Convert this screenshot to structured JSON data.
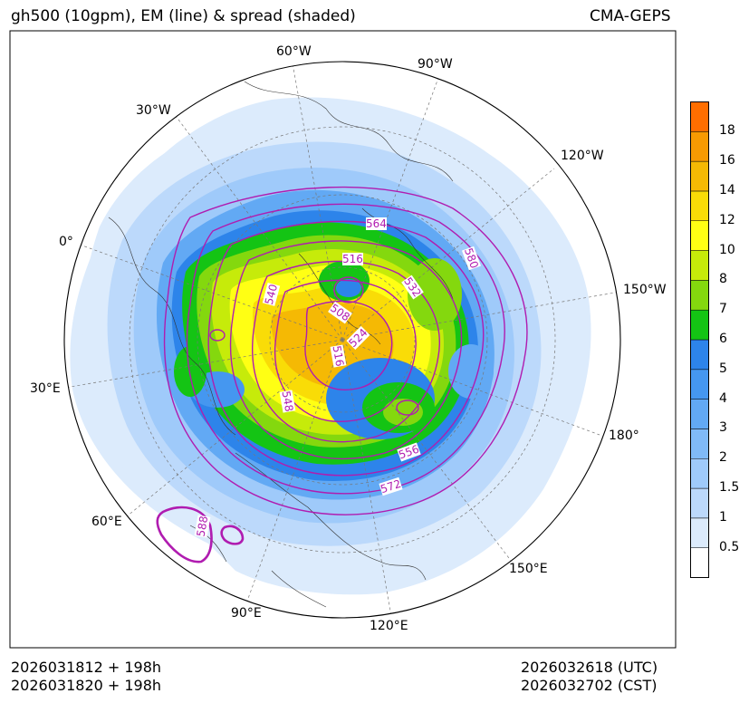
{
  "header": {
    "title": "gh500 (10gpm), EM (line) & spread (shaded)",
    "source": "CMA-GEPS"
  },
  "footer": {
    "init_utc": "2026031812 + 198h",
    "init_cst": "2026031820 + 198h",
    "valid_utc": "2026032618 (UTC)",
    "valid_cst": "2026032702 (CST)"
  },
  "map": {
    "projection": "north polar stereographic",
    "meridian_labels": [
      "60°W",
      "90°W",
      "30°W",
      "120°W",
      "0°",
      "150°W",
      "30°E",
      "180°",
      "60°E",
      "150°E",
      "90°E",
      "120°E"
    ],
    "contour_labels": [
      "564",
      "580",
      "516",
      "532",
      "540",
      "508",
      "524",
      "516",
      "548",
      "556",
      "572",
      "588"
    ],
    "contour_color": "#b01cb0"
  },
  "colorbar": {
    "levels": [
      "0.5",
      "1",
      "1.5",
      "2",
      "3",
      "4",
      "5",
      "6",
      "7",
      "8",
      "10",
      "12",
      "14",
      "16",
      "18"
    ],
    "colors": [
      "#ffffff",
      "#dcebfc",
      "#bcd9fb",
      "#9fcafa",
      "#80baf7",
      "#62a9f4",
      "#4597f0",
      "#2d84ea",
      "#14c414",
      "#84d80e",
      "#c6eb0a",
      "#ffff14",
      "#f9dc07",
      "#f5b904",
      "#f79a02",
      "#ff6e00"
    ]
  }
}
